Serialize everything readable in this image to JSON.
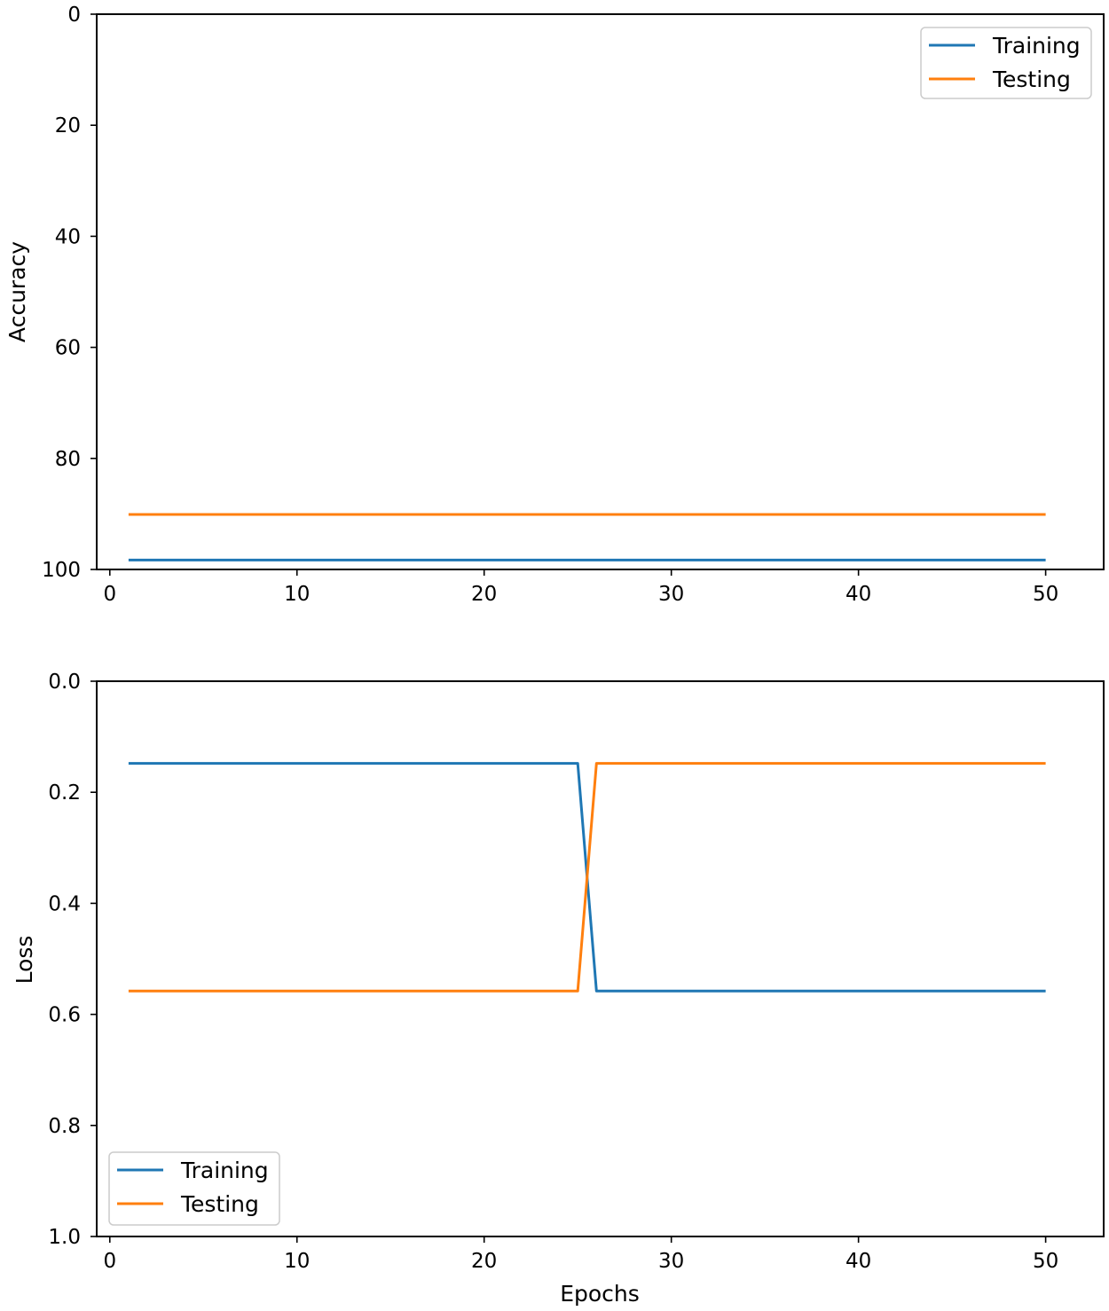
{
  "chart_data": [
    {
      "type": "line",
      "xlabel": "",
      "ylabel": "Accuracy",
      "xlim": [
        -0.7,
        53.1
      ],
      "ylim": [
        0,
        100
      ],
      "y_inverted": true,
      "xticks": [
        0,
        10,
        20,
        30,
        40,
        50
      ],
      "yticks": [
        0,
        20,
        40,
        60,
        80,
        100
      ],
      "ytick_labels": [
        "0",
        "20",
        "40",
        "60",
        "80",
        "100"
      ],
      "legend": "top-right",
      "grid": false,
      "series": [
        {
          "name": "Training",
          "color": "#1f77b4",
          "x": [
            1,
            50
          ],
          "y": [
            98.3,
            98.3
          ]
        },
        {
          "name": "Testing",
          "color": "#ff7f0e",
          "x": [
            1,
            50
          ],
          "y": [
            90.1,
            90.1
          ]
        }
      ]
    },
    {
      "type": "line",
      "xlabel": "Epochs",
      "ylabel": "Loss",
      "xlim": [
        -0.7,
        53.1
      ],
      "ylim": [
        0.0,
        1.0
      ],
      "y_inverted": true,
      "xticks": [
        0,
        10,
        20,
        30,
        40,
        50
      ],
      "yticks": [
        0.0,
        0.2,
        0.4,
        0.6,
        0.8,
        1.0
      ],
      "ytick_labels": [
        "0.0",
        "0.2",
        "0.4",
        "0.6",
        "0.8",
        "1.0"
      ],
      "legend": "bottom-left",
      "grid": false,
      "series": [
        {
          "name": "Training",
          "color": "#1f77b4",
          "x": [
            1,
            25,
            26,
            50
          ],
          "y": [
            0.148,
            0.148,
            0.558,
            0.558
          ]
        },
        {
          "name": "Testing",
          "color": "#ff7f0e",
          "x": [
            1,
            25,
            26,
            50
          ],
          "y": [
            0.558,
            0.558,
            0.148,
            0.148
          ]
        }
      ]
    }
  ]
}
